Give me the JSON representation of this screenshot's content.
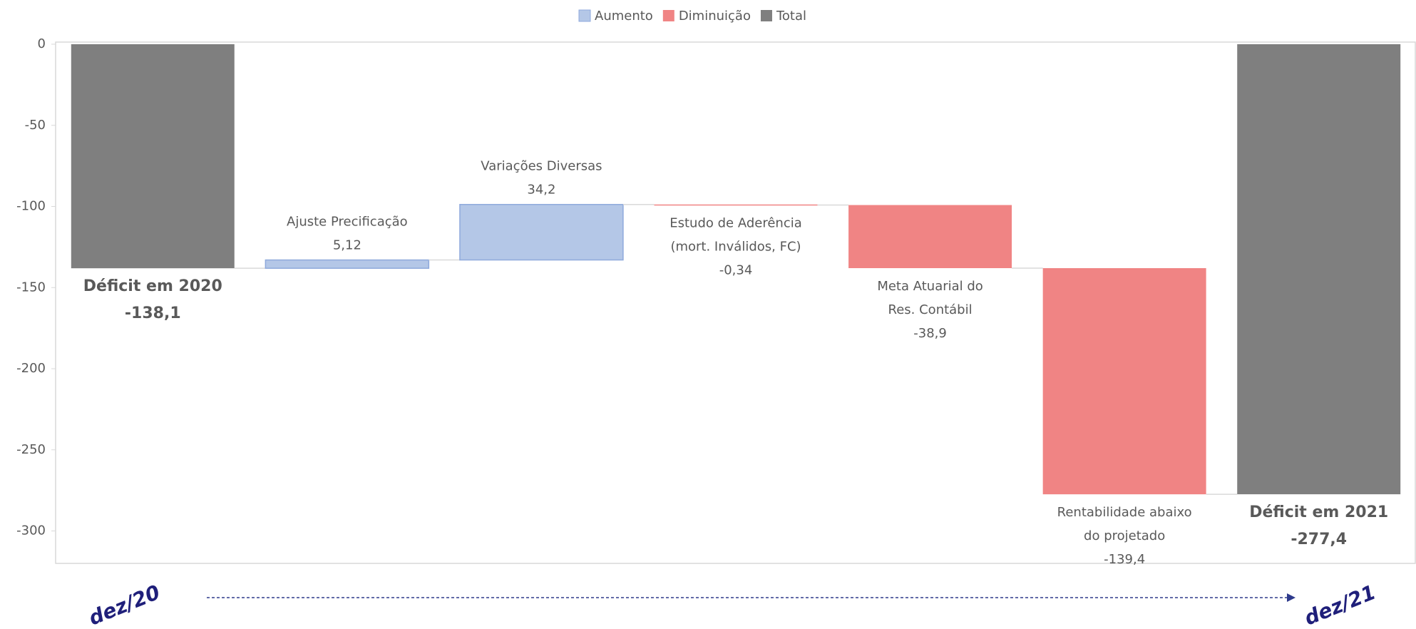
{
  "chart_data": {
    "type": "waterfall",
    "categories": [
      [
        "Déficit em 2020"
      ],
      [
        "Ajuste Precificação"
      ],
      [
        "Variações Diversas"
      ],
      [
        "Estudo de Aderência",
        "(mort. Inválidos, FC)"
      ],
      [
        "Meta Atuarial do",
        "Res. Contábil"
      ],
      [
        "Rentabilidade abaixo",
        "do projetado"
      ],
      [
        "Déficit em 2021"
      ]
    ],
    "series": [
      {
        "name": "Aumento",
        "color": "#b4c7e7",
        "values": [
          null,
          5.12,
          34.2,
          null,
          null,
          null,
          null
        ],
        "value_labels": [
          null,
          "5,12",
          "34,2",
          null,
          null,
          null,
          null
        ]
      },
      {
        "name": "Diminuição",
        "color": "#f08484",
        "values": [
          null,
          null,
          null,
          -0.34,
          -38.9,
          -139.4,
          null
        ],
        "value_labels": [
          null,
          null,
          null,
          "-0,34",
          "-38,9",
          "-139,4",
          null
        ]
      },
      {
        "name": "Total",
        "color": "#7f7f7f",
        "values": [
          -138.1,
          null,
          null,
          null,
          null,
          null,
          -277.4
        ],
        "value_labels": [
          "-138,1",
          null,
          null,
          null,
          null,
          null,
          "-277,4"
        ]
      }
    ],
    "ylim": [
      -320,
      0
    ],
    "yticks": [
      0,
      -50,
      -100,
      -150,
      -200,
      -250,
      -300
    ],
    "annotations": [
      "dez/20",
      "dez/21"
    ]
  }
}
